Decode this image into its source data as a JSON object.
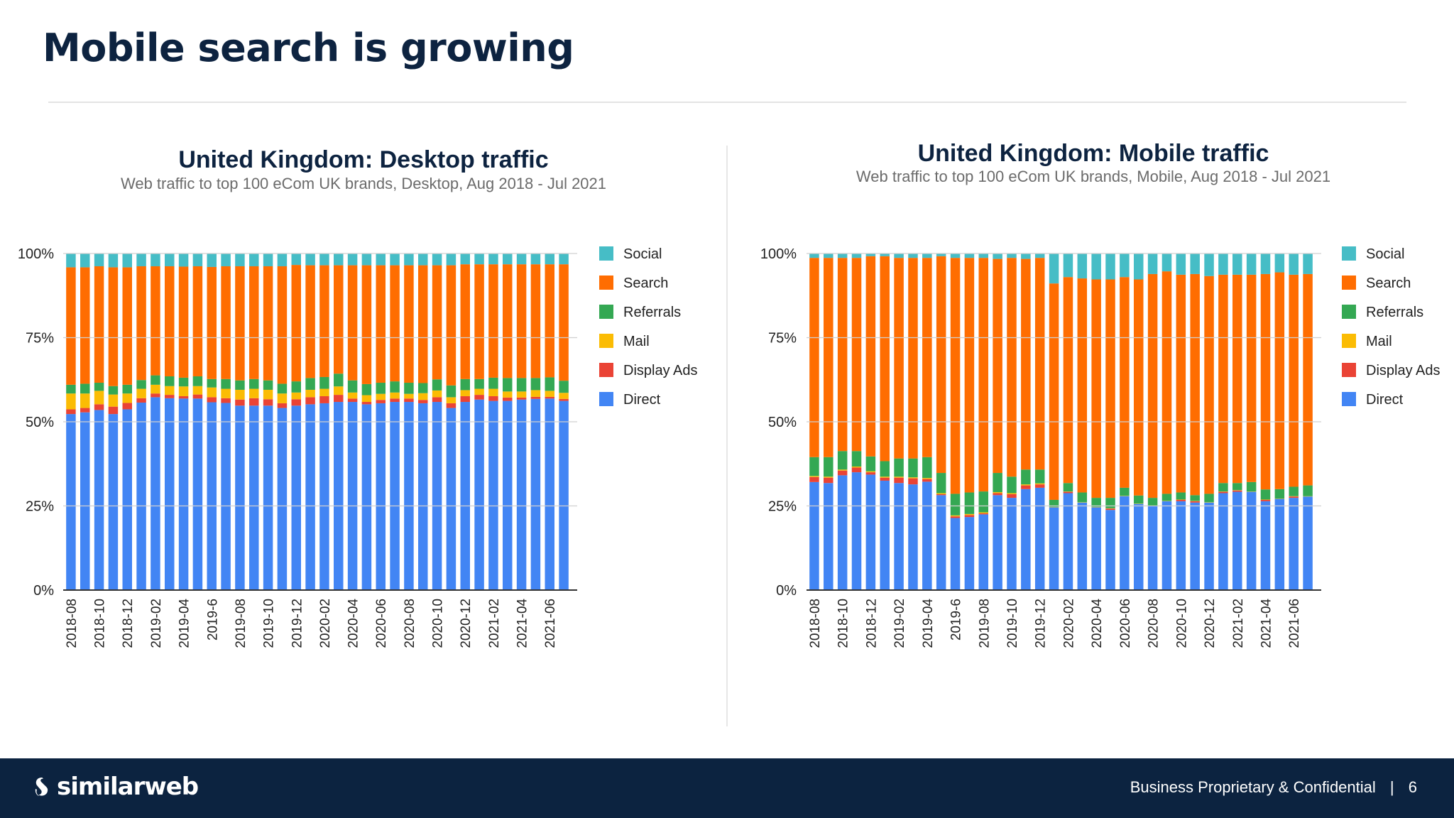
{
  "slide": {
    "title": "Mobile search is growing",
    "footer": {
      "logo_text": "similarweb",
      "confidential": "Business Proprietary & Confidential",
      "separator": "|",
      "page_number": "6"
    },
    "colors": {
      "navy": "#0c2340"
    }
  },
  "chart_data": [
    {
      "type": "bar",
      "stacked": "percent",
      "title": "United Kingdom: Desktop traffic",
      "subtitle": "Web traffic to top 100 eCom UK brands, Desktop, Aug 2018 - Jul 2021",
      "x_tick_labels": [
        "2018-08",
        "2018-10",
        "2018-12",
        "2019-02",
        "2019-04",
        "2019-6",
        "2019-08",
        "2019-10",
        "2019-12",
        "2020-02",
        "2020-04",
        "2020-06",
        "2020-08",
        "2020-10",
        "2020-12",
        "2021-02",
        "2021-04",
        "2021-06"
      ],
      "y_tick_labels": [
        "0%",
        "25%",
        "50%",
        "75%",
        "100%"
      ],
      "ylim": [
        0,
        100
      ],
      "grid": true,
      "legend_position": "right",
      "series": [
        {
          "name": "Direct",
          "color": "#4285f4",
          "values": [
            52.3,
            52.8,
            53.5,
            52.3,
            53.7,
            55.7,
            57.3,
            57.0,
            56.9,
            56.9,
            55.8,
            55.6,
            54.8,
            54.8,
            54.8,
            54.1,
            54.8,
            55.2,
            55.5,
            55.9,
            55.9,
            55.2,
            55.5,
            55.9,
            55.9,
            55.5,
            55.9,
            54.1,
            55.9,
            56.6,
            56.2,
            56.2,
            56.6,
            56.8,
            56.9,
            56.2
          ]
        },
        {
          "name": "Display Ads",
          "color": "#ea4335",
          "values": [
            1.4,
            1.3,
            1.7,
            2.2,
            1.9,
            1.3,
            1.1,
            1.0,
            0.7,
            1.2,
            1.5,
            1.4,
            1.8,
            2.2,
            1.9,
            1.4,
            1.9,
            2.1,
            2.1,
            2.1,
            1.0,
            0.7,
            1.0,
            1.0,
            1.0,
            1.0,
            1.4,
            1.4,
            1.7,
            1.4,
            1.4,
            1.0,
            0.6,
            0.6,
            0.5,
            0.6
          ]
        },
        {
          "name": "Mail",
          "color": "#fbbc04",
          "values": [
            4.7,
            4.3,
            4.0,
            3.6,
            2.8,
            2.8,
            2.6,
            2.6,
            2.9,
            2.5,
            2.9,
            2.8,
            2.9,
            2.8,
            2.8,
            2.9,
            2.0,
            2.2,
            2.2,
            2.5,
            1.8,
            2.0,
            1.8,
            1.8,
            1.4,
            2.0,
            2.0,
            1.8,
            1.8,
            1.8,
            2.2,
            1.8,
            1.8,
            2.0,
            1.8,
            1.8
          ]
        },
        {
          "name": "Referrals",
          "color": "#34a853",
          "values": [
            2.6,
            2.9,
            2.4,
            2.5,
            2.6,
            2.6,
            2.8,
            2.9,
            2.6,
            2.9,
            2.5,
            2.9,
            2.8,
            2.9,
            2.8,
            2.9,
            3.3,
            3.5,
            3.5,
            3.8,
            3.6,
            3.3,
            3.3,
            3.3,
            3.3,
            3.0,
            3.3,
            3.5,
            3.3,
            2.9,
            3.3,
            4.0,
            4.0,
            3.6,
            4.0,
            3.6
          ]
        },
        {
          "name": "Search",
          "color": "#ff6d01",
          "values": [
            34.9,
            34.6,
            34.6,
            35.3,
            34.9,
            33.8,
            32.4,
            32.7,
            33.0,
            32.7,
            33.3,
            33.5,
            33.9,
            33.5,
            33.9,
            34.9,
            34.6,
            33.5,
            33.2,
            32.2,
            34.2,
            35.3,
            34.9,
            34.5,
            34.9,
            35.0,
            33.9,
            35.7,
            34.1,
            34.1,
            33.7,
            33.8,
            33.8,
            33.8,
            33.6,
            34.6
          ]
        },
        {
          "name": "Social",
          "color": "#46bdc6",
          "values": [
            4.1,
            4.1,
            3.8,
            4.1,
            4.1,
            3.8,
            3.8,
            3.8,
            3.9,
            3.8,
            4.0,
            3.8,
            3.8,
            3.8,
            3.8,
            3.8,
            3.4,
            3.5,
            3.5,
            3.5,
            3.5,
            3.5,
            3.5,
            3.5,
            3.5,
            3.5,
            3.5,
            3.5,
            3.2,
            3.2,
            3.2,
            3.2,
            3.2,
            3.2,
            3.2,
            3.2
          ]
        }
      ]
    },
    {
      "type": "bar",
      "stacked": "percent",
      "title": "United Kingdom: Mobile traffic",
      "subtitle": "Web traffic to top 100 eCom UK brands, Mobile, Aug 2018 - Jul 2021",
      "x_tick_labels": [
        "2018-08",
        "2018-10",
        "2018-12",
        "2019-02",
        "2019-04",
        "2019-6",
        "2019-08",
        "2019-10",
        "2019-12",
        "2020-02",
        "2020-04",
        "2020-06",
        "2020-08",
        "2020-10",
        "2020-12",
        "2021-02",
        "2021-04",
        "2021-06"
      ],
      "y_tick_labels": [
        "0%",
        "25%",
        "50%",
        "75%",
        "100%"
      ],
      "ylim": [
        0,
        100
      ],
      "grid": true,
      "legend_position": "right",
      "series": [
        {
          "name": "Direct",
          "color": "#4285f4",
          "values": [
            32.1,
            31.8,
            34.1,
            35.0,
            34.3,
            32.5,
            31.8,
            31.4,
            32.2,
            28.2,
            21.4,
            21.7,
            22.5,
            28.2,
            27.4,
            30.0,
            30.4,
            24.6,
            28.8,
            26.0,
            24.6,
            23.8,
            27.9,
            25.6,
            24.9,
            26.4,
            26.4,
            26.0,
            26.0,
            28.8,
            29.2,
            29.2,
            26.4,
            27.1,
            27.4,
            27.8
          ]
        },
        {
          "name": "Display Ads",
          "color": "#ea4335",
          "values": [
            1.5,
            1.6,
            1.4,
            1.4,
            0.7,
            0.9,
            1.6,
            1.8,
            0.8,
            0.3,
            0.5,
            0.6,
            0.3,
            0.6,
            1.1,
            1.1,
            1.0,
            0,
            0.4,
            0,
            0,
            0.4,
            0,
            0,
            0,
            0,
            0.4,
            0.4,
            0,
            0.4,
            0.4,
            0,
            0.4,
            0,
            0.4,
            0
          ]
        },
        {
          "name": "Mail",
          "color": "#fbbc04",
          "values": [
            0.3,
            0.3,
            0.3,
            0.3,
            0.3,
            0.3,
            0.3,
            0.3,
            0.3,
            0.3,
            0.3,
            0.3,
            0.3,
            0.3,
            0.3,
            0.3,
            0.3,
            0.1,
            0.1,
            0.1,
            0.1,
            0.1,
            0.1,
            0.1,
            0.1,
            0.1,
            0.1,
            0.1,
            0.1,
            0.1,
            0.1,
            0.1,
            0.1,
            0.1,
            0.1,
            0.1
          ]
        },
        {
          "name": "Referrals",
          "color": "#34a853",
          "values": [
            5.6,
            5.8,
            5.5,
            4.6,
            4.4,
            4.6,
            5.4,
            5.6,
            6.2,
            6.0,
            6.4,
            6.4,
            6.2,
            5.7,
            4.9,
            4.4,
            4.1,
            2.1,
            2.5,
            2.9,
            2.7,
            3.1,
            2.4,
            2.4,
            2.4,
            2.1,
            2.1,
            1.7,
            2.5,
            2.5,
            2.1,
            2.8,
            3.0,
            2.8,
            2.8,
            3.2
          ]
        },
        {
          "name": "Search",
          "color": "#ff6d01",
          "values": [
            59.2,
            59.2,
            57.4,
            57.4,
            59.5,
            60.9,
            59.6,
            59.6,
            59.2,
            64.4,
            70.1,
            69.7,
            69.4,
            63.6,
            65.0,
            62.6,
            62.9,
            64.3,
            61.2,
            63.6,
            64.9,
            64.9,
            62.6,
            64.2,
            66.5,
            66.1,
            64.7,
            65.7,
            64.7,
            61.9,
            61.9,
            61.6,
            64.0,
            64.4,
            63.0,
            62.8
          ]
        },
        {
          "name": "Social",
          "color": "#46bdc6",
          "values": [
            1.3,
            1.3,
            1.3,
            1.3,
            0.8,
            0.8,
            1.3,
            1.3,
            1.3,
            0.8,
            1.3,
            1.3,
            1.3,
            1.6,
            1.3,
            1.6,
            1.3,
            8.9,
            7.0,
            7.4,
            7.7,
            7.7,
            7.0,
            7.7,
            6.1,
            5.3,
            6.3,
            6.1,
            6.7,
            6.3,
            6.3,
            6.3,
            6.1,
            5.6,
            6.3,
            6.1
          ]
        }
      ]
    }
  ]
}
